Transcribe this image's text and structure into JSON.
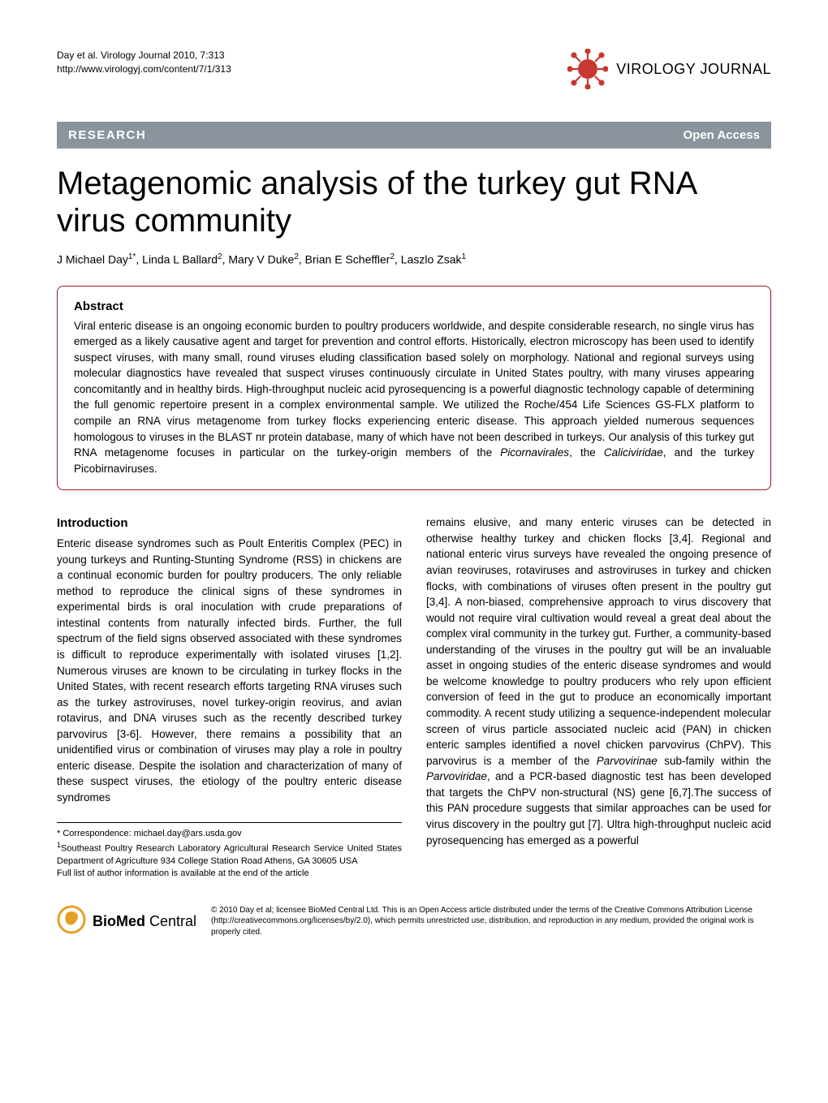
{
  "header": {
    "citation_line1": "Day et al. Virology Journal 2010, 7:313",
    "citation_line2": "http://www.virologyj.com/content/7/1/313",
    "journal_name": "VIROLOGY JOURNAL"
  },
  "banner": {
    "left": "RESEARCH",
    "right": "Open Access"
  },
  "title": "Metagenomic analysis of the turkey gut RNA virus community",
  "authors_html": "J Michael Day<sup>1*</sup>, Linda L Ballard<sup>2</sup>, Mary V Duke<sup>2</sup>, Brian E Scheffler<sup>2</sup>, Laszlo Zsak<sup>1</sup>",
  "abstract": {
    "heading": "Abstract",
    "text_html": "Viral enteric disease is an ongoing economic burden to poultry producers worldwide, and despite considerable research, no single virus has emerged as a likely causative agent and target for prevention and control efforts. Historically, electron microscopy has been used to identify suspect viruses, with many small, round viruses eluding classification based solely on morphology. National and regional surveys using molecular diagnostics have revealed that suspect viruses continuously circulate in United States poultry, with many viruses appearing concomitantly and in healthy birds. High-throughput nucleic acid pyrosequencing is a powerful diagnostic technology capable of determining the full genomic repertoire present in a complex environmental sample. We utilized the Roche/454 Life Sciences GS-FLX platform to compile an RNA virus metagenome from turkey flocks experiencing enteric disease. This approach yielded numerous sequences homologous to viruses in the BLAST nr protein database, many of which have not been described in turkeys. Our analysis of this turkey gut RNA metagenome focuses in particular on the turkey-origin members of the <em>Picornavirales</em>, the <em>Caliciviridae</em>, and the turkey Picobirnaviruses."
  },
  "introduction": {
    "heading": "Introduction",
    "col1_html": "Enteric disease syndromes such as Poult Enteritis Complex (PEC) in young turkeys and Runting-Stunting Syndrome (RSS) in chickens are a continual economic burden for poultry producers. The only reliable method to reproduce the clinical signs of these syndromes in experimental birds is oral inoculation with crude preparations of intestinal contents from naturally infected birds. Further, the full spectrum of the field signs observed associated with these syndromes is difficult to reproduce experimentally with isolated viruses [1,2]. Numerous viruses are known to be circulating in turkey flocks in the United States, with recent research efforts targeting RNA viruses such as the turkey astroviruses, novel turkey-origin reovirus, and avian rotavirus, and DNA viruses such as the recently described turkey parvovirus [3-6]. However, there remains a possibility that an unidentified virus or combination of viruses may play a role in poultry enteric disease. Despite the isolation and characterization of many of these suspect viruses, the etiology of the poultry enteric disease syndromes",
    "col2_html": "remains elusive, and many enteric viruses can be detected in otherwise healthy turkey and chicken flocks [3,4]. Regional and national enteric virus surveys have revealed the ongoing presence of avian reoviruses, rotaviruses and astroviruses in turkey and chicken flocks, with combinations of viruses often present in the poultry gut [3,4]. A non-biased, comprehensive approach to virus discovery that would not require viral cultivation would reveal a great deal about the complex viral community in the turkey gut. Further, a community-based understanding of the viruses in the poultry gut will be an invaluable asset in ongoing studies of the enteric disease syndromes and would be welcome knowledge to poultry producers who rely upon efficient conversion of feed in the gut to produce an economically important commodity. A recent study utilizing a sequence-independent molecular screen of virus particle associated nucleic acid (PAN) in chicken enteric samples identified a novel chicken parvovirus (ChPV). This parvovirus is a member of the <em>Parvovirinae</em> sub-family within the <em>Parvoviridae</em>, and a PCR-based diagnostic test has been developed that targets the ChPV non-structural (NS) gene [6,7].The success of this PAN procedure suggests that similar approaches can be used for virus discovery in the poultry gut [7]. Ultra high-throughput nucleic acid pyrosequencing has emerged as a powerful"
  },
  "footnotes": {
    "correspondence": "* Correspondence: michael.day@ars.usda.gov",
    "affiliation": "<sup>1</sup>Southeast Poultry Research Laboratory Agricultural Research Service United States Department of Agriculture 934 College Station Road Athens, GA 30605 USA",
    "author_info": "Full list of author information is available at the end of the article"
  },
  "footer": {
    "bmc_html": "<b>BioMed</b> Central",
    "license": "© 2010 Day et al; licensee BioMed Central Ltd. This is an Open Access article distributed under the terms of the Creative Commons Attribution License (http://creativecommons.org/licenses/by/2.0), which permits unrestricted use, distribution, and reproduction in any medium, provided the original work is properly cited."
  },
  "colors": {
    "banner_bg": "#8b949c",
    "abstract_border": "#9d1c20",
    "virus_icon": "#c73832",
    "bmc_icon": "#e5a023"
  }
}
